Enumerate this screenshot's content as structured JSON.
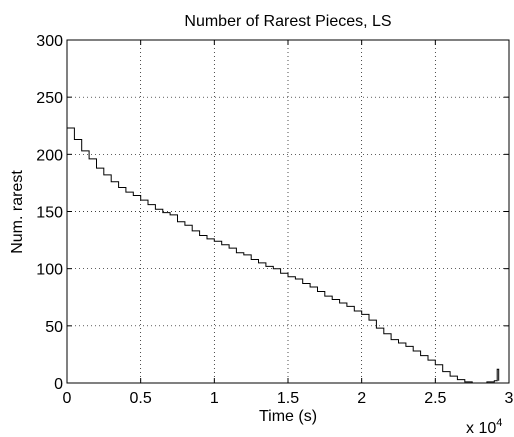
{
  "chart_data": {
    "type": "line",
    "title": "Number of Rarest Pieces, LS",
    "xlabel": "Time (s)",
    "ylabel": "Num. rarest",
    "x_multiplier_label": {
      "base": "x 10",
      "exponent": "4"
    },
    "xlim": [
      0,
      3
    ],
    "ylim": [
      0,
      300
    ],
    "xticks": [
      "0",
      "0.5",
      "1",
      "1.5",
      "2",
      "2.5",
      "3"
    ],
    "yticks": [
      "0",
      "50",
      "100",
      "150",
      "200",
      "250",
      "300"
    ],
    "grid": true,
    "series": [
      {
        "color": "#000000",
        "x": [
          0,
          0.05,
          0.1,
          0.15,
          0.2,
          0.25,
          0.3,
          0.35,
          0.4,
          0.45,
          0.5,
          0.55,
          0.6,
          0.65,
          0.7,
          0.75,
          0.8,
          0.85,
          0.9,
          0.95,
          1.0,
          1.05,
          1.1,
          1.15,
          1.2,
          1.25,
          1.3,
          1.35,
          1.4,
          1.45,
          1.5,
          1.55,
          1.6,
          1.65,
          1.7,
          1.75,
          1.8,
          1.85,
          1.9,
          1.95,
          2.0,
          2.05,
          2.1,
          2.15,
          2.2,
          2.25,
          2.3,
          2.35,
          2.4,
          2.45,
          2.5,
          2.55,
          2.6,
          2.65,
          2.7,
          2.75,
          2.8,
          2.85,
          2.9,
          2.92,
          2.93
        ],
        "y": [
          223,
          213,
          203,
          196,
          188,
          182,
          176,
          171,
          167,
          164,
          160,
          156,
          152,
          149,
          147,
          141,
          138,
          133,
          129,
          126,
          124,
          121,
          118,
          114,
          112,
          108,
          105,
          102,
          100,
          96,
          93,
          91,
          87,
          84,
          80,
          76,
          73,
          70,
          67,
          63,
          60,
          55,
          48,
          43,
          38,
          35,
          32,
          28,
          24,
          20,
          16,
          10,
          6,
          3,
          1,
          0,
          0,
          1,
          2,
          12,
          2
        ]
      }
    ]
  }
}
